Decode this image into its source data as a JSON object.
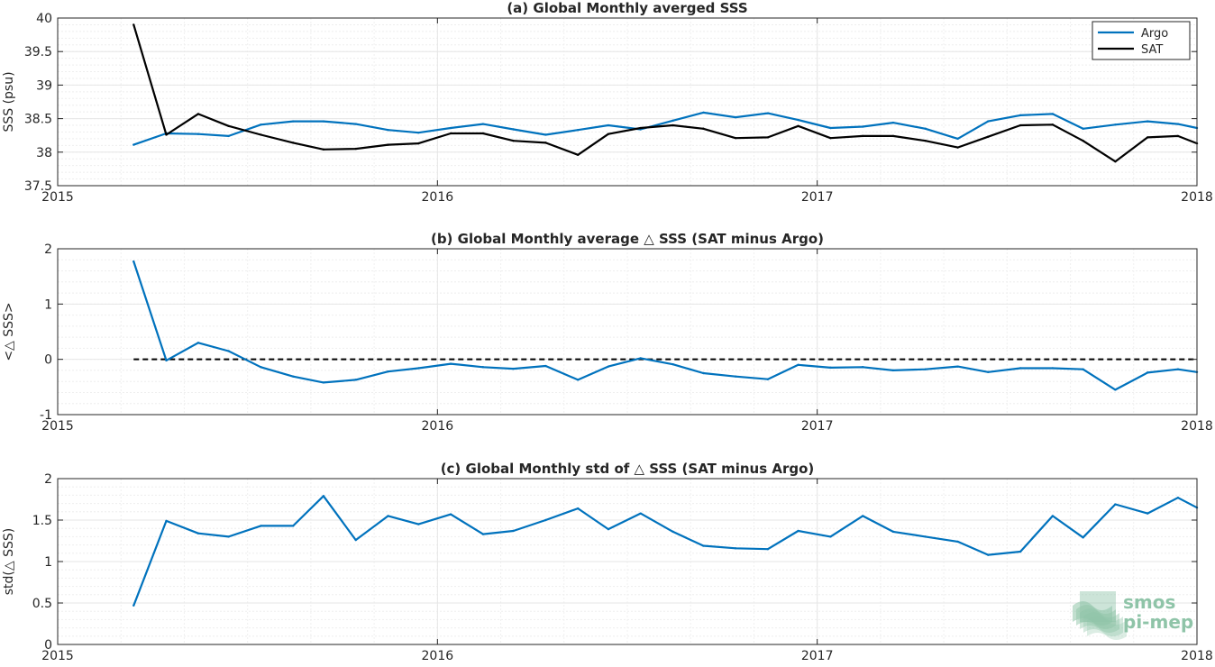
{
  "logo": {
    "line1": "smos",
    "line2": "pi-mep"
  },
  "colors": {
    "argo": "#0072bd",
    "sat": "#000000",
    "grid": "#e6e6e6",
    "axis": "#262626",
    "logo": "#8fc4a8"
  },
  "chart_data": [
    {
      "type": "line",
      "title": "(a) Global Monthly averged SSS",
      "xlabel": "",
      "ylabel": "SSS (psu)",
      "xlim": [
        2015,
        2018
      ],
      "ylim": [
        37.5,
        40
      ],
      "xticks": [
        2015,
        2016,
        2017,
        2018
      ],
      "xtick_labels": [
        "2015",
        "2016",
        "2017",
        "2018"
      ],
      "yticks": [
        37.5,
        38,
        38.5,
        39,
        39.5,
        40
      ],
      "ytick_labels": [
        "37.5",
        "38",
        "38.5",
        "39",
        "39.5",
        "40"
      ],
      "grid": true,
      "legend": "top-right",
      "x": [
        2015.2,
        2015.286,
        2015.37,
        2015.45,
        2015.535,
        2015.62,
        2015.7,
        2015.785,
        2015.87,
        2015.95,
        2016.035,
        2016.12,
        2016.2,
        2016.285,
        2016.37,
        2016.45,
        2016.535,
        2016.62,
        2016.7,
        2016.785,
        2016.87,
        2016.95,
        2017.035,
        2017.12,
        2017.2,
        2017.285,
        2017.37,
        2017.45,
        2017.535,
        2017.62,
        2017.7,
        2017.785,
        2017.87,
        2017.95,
        2018.0
      ],
      "series": [
        {
          "name": "Argo",
          "color": "#0072bd",
          "values": [
            38.11,
            38.28,
            38.27,
            38.24,
            38.41,
            38.46,
            38.46,
            38.42,
            38.33,
            38.29,
            38.36,
            38.42,
            38.34,
            38.26,
            38.33,
            38.4,
            38.34,
            38.47,
            38.59,
            38.52,
            38.58,
            38.48,
            38.36,
            38.38,
            38.44,
            38.35,
            38.2,
            38.46,
            38.55,
            38.57,
            38.35,
            38.41,
            38.46,
            38.42,
            38.36
          ]
        },
        {
          "name": "SAT",
          "color": "#000000",
          "values": [
            39.9,
            38.26,
            38.57,
            38.39,
            38.26,
            38.14,
            38.04,
            38.05,
            38.11,
            38.13,
            38.28,
            38.28,
            38.17,
            38.14,
            37.96,
            38.27,
            38.36,
            38.4,
            38.35,
            38.21,
            38.22,
            38.39,
            38.21,
            38.24,
            38.24,
            38.17,
            38.07,
            38.23,
            38.4,
            38.41,
            38.17,
            37.86,
            38.22,
            38.24,
            38.13
          ]
        }
      ]
    },
    {
      "type": "line",
      "title": "(b) Global Monthly average △ SSS (SAT minus Argo)",
      "xlabel": "",
      "ylabel": "<△ SSS>",
      "xlim": [
        2015,
        2018
      ],
      "ylim": [
        -1,
        2
      ],
      "xticks": [
        2015,
        2016,
        2017,
        2018
      ],
      "xtick_labels": [
        "2015",
        "2016",
        "2017",
        "2018"
      ],
      "yticks": [
        -1,
        0,
        1,
        2
      ],
      "ytick_labels": [
        "-1",
        "0",
        "1",
        "2"
      ],
      "grid": true,
      "reference_line": {
        "y": 0,
        "style": "dashed",
        "color": "#000000"
      },
      "x": [
        2015.2,
        2015.286,
        2015.37,
        2015.45,
        2015.535,
        2015.62,
        2015.7,
        2015.785,
        2015.87,
        2015.95,
        2016.035,
        2016.12,
        2016.2,
        2016.285,
        2016.37,
        2016.45,
        2016.535,
        2016.62,
        2016.7,
        2016.785,
        2016.87,
        2016.95,
        2017.035,
        2017.12,
        2017.2,
        2017.285,
        2017.37,
        2017.45,
        2017.535,
        2017.62,
        2017.7,
        2017.785,
        2017.87,
        2017.95,
        2018.0
      ],
      "series": [
        {
          "color": "#0072bd",
          "values": [
            1.77,
            -0.02,
            0.3,
            0.15,
            -0.14,
            -0.31,
            -0.42,
            -0.37,
            -0.22,
            -0.16,
            -0.08,
            -0.14,
            -0.17,
            -0.12,
            -0.37,
            -0.13,
            0.02,
            -0.09,
            -0.25,
            -0.31,
            -0.36,
            -0.1,
            -0.15,
            -0.14,
            -0.2,
            -0.18,
            -0.13,
            -0.23,
            -0.16,
            -0.16,
            -0.18,
            -0.55,
            -0.24,
            -0.18,
            -0.23
          ]
        }
      ]
    },
    {
      "type": "line",
      "title": "(c) Global Monthly std of △ SSS (SAT minus Argo)",
      "xlabel": "",
      "ylabel": "std(△ SSS)",
      "xlim": [
        2015,
        2018
      ],
      "ylim": [
        0,
        2
      ],
      "xticks": [
        2015,
        2016,
        2017,
        2018
      ],
      "xtick_labels": [
        "2015",
        "2016",
        "2017",
        "2018"
      ],
      "yticks": [
        0,
        0.5,
        1,
        1.5,
        2
      ],
      "ytick_labels": [
        "0",
        "0.5",
        "1",
        "1.5",
        "2"
      ],
      "grid": true,
      "x": [
        2015.2,
        2015.286,
        2015.37,
        2015.45,
        2015.535,
        2015.62,
        2015.7,
        2015.785,
        2015.87,
        2015.95,
        2016.035,
        2016.12,
        2016.2,
        2016.285,
        2016.37,
        2016.45,
        2016.535,
        2016.62,
        2016.7,
        2016.785,
        2016.87,
        2016.95,
        2017.035,
        2017.12,
        2017.2,
        2017.285,
        2017.37,
        2017.45,
        2017.535,
        2017.62,
        2017.7,
        2017.785,
        2017.87,
        2017.95,
        2018.0
      ],
      "series": [
        {
          "color": "#0072bd",
          "values": [
            0.47,
            1.49,
            1.34,
            1.3,
            1.43,
            1.43,
            1.79,
            1.26,
            1.55,
            1.45,
            1.57,
            1.33,
            1.37,
            1.5,
            1.64,
            1.39,
            1.58,
            1.36,
            1.19,
            1.16,
            1.15,
            1.37,
            1.3,
            1.55,
            1.36,
            1.3,
            1.24,
            1.08,
            1.12,
            1.55,
            1.29,
            1.69,
            1.58,
            1.77,
            1.65
          ]
        }
      ]
    }
  ]
}
